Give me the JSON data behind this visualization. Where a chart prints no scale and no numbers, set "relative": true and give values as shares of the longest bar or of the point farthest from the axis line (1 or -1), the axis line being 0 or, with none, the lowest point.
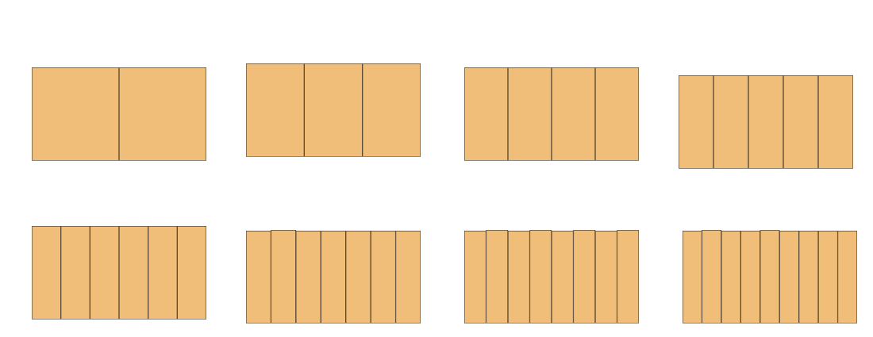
{
  "chart_data": [
    {
      "type": "bar",
      "relative": true,
      "categories": [
        null,
        null
      ],
      "values": [
        1,
        1
      ],
      "color": "#f0be78",
      "grid": false,
      "tick_labels": false
    },
    {
      "type": "bar",
      "relative": true,
      "categories": [
        null,
        null,
        null
      ],
      "values": [
        1,
        1,
        1
      ],
      "color": "#f0be78",
      "grid": false,
      "tick_labels": false
    },
    {
      "type": "bar",
      "relative": true,
      "categories": [
        null,
        null,
        null,
        null
      ],
      "values": [
        1,
        1,
        1,
        1
      ],
      "color": "#f0be78",
      "grid": false,
      "tick_labels": false
    },
    {
      "type": "bar",
      "relative": true,
      "categories": [
        null,
        null,
        null,
        null,
        null
      ],
      "values": [
        1,
        1,
        1,
        1,
        1
      ],
      "color": "#f0be78",
      "grid": false,
      "tick_labels": false
    },
    {
      "type": "bar",
      "relative": true,
      "categories": [
        null,
        null,
        null,
        null,
        null,
        null
      ],
      "values": [
        1,
        1,
        1,
        1,
        1,
        1
      ],
      "color": "#f0be78",
      "grid": false,
      "tick_labels": false
    },
    {
      "type": "bar",
      "relative": true,
      "categories": [
        null,
        null,
        null,
        null,
        null,
        null,
        null
      ],
      "values": [
        0.99,
        1,
        0.99,
        0.99,
        0.99,
        0.99,
        0.99
      ],
      "color": "#f0be78",
      "grid": false,
      "tick_labels": false
    },
    {
      "type": "bar",
      "relative": true,
      "categories": [
        null,
        null,
        null,
        null,
        null,
        null,
        null,
        null
      ],
      "values": [
        0.99,
        1,
        0.99,
        1,
        0.99,
        1,
        0.99,
        1
      ],
      "color": "#f0be78",
      "grid": false,
      "tick_labels": false
    },
    {
      "type": "bar",
      "relative": true,
      "categories": [
        null,
        null,
        null,
        null,
        null,
        null,
        null,
        null,
        null
      ],
      "values": [
        0.99,
        1,
        0.99,
        0.99,
        1,
        0.99,
        0.99,
        0.99,
        0.99
      ],
      "color": "#f0be78",
      "grid": false,
      "tick_labels": false
    }
  ]
}
